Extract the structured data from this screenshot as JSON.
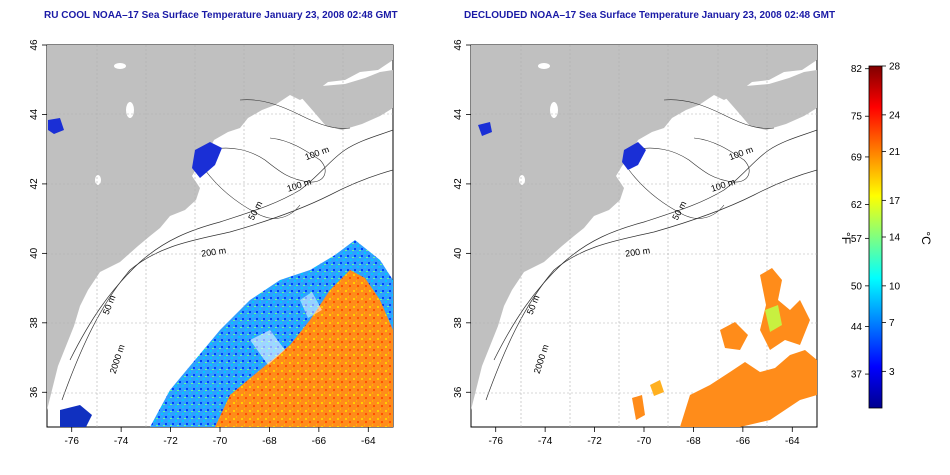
{
  "panels": [
    {
      "title": "RU COOL NOAA–17 Sea Surface Temperature January 23, 2008 02:48 GMT",
      "x_ticks": [
        "-76",
        "-74",
        "-72",
        "-70",
        "-68",
        "-66",
        "-64"
      ],
      "y_ticks": [
        "46",
        "44",
        "42",
        "40",
        "38",
        "36"
      ],
      "contour_labels": [
        "100 m",
        "100 m",
        "50 m",
        "200 m",
        "50 m",
        "2000 m"
      ]
    },
    {
      "title": "DECLOUDED NOAA–17 Sea Surface Temperature January 23, 2008 02:48 GMT",
      "x_ticks": [
        "-76",
        "-74",
        "-72",
        "-70",
        "-68",
        "-66",
        "-64"
      ],
      "y_ticks": [
        "46",
        "44",
        "42",
        "40",
        "38",
        "36"
      ],
      "contour_labels": [
        "100 m",
        "100 m",
        "50 m",
        "200 m",
        "50 m",
        "2000 m"
      ]
    }
  ],
  "map_extent": {
    "lon": [
      -77,
      -63
    ],
    "lat": [
      35,
      46
    ]
  },
  "colorbar": {
    "f_label": "°F",
    "c_label": "°C",
    "f_ticks": [
      "82",
      "75",
      "69",
      "62",
      "57",
      "50",
      "44",
      "37"
    ],
    "c_ticks": [
      "28",
      "24",
      "21",
      "17",
      "14",
      "10",
      "7",
      "3"
    ],
    "colors": [
      "#00008f",
      "#0000ff",
      "#0080ff",
      "#00ffff",
      "#80ff80",
      "#ffff00",
      "#ff8000",
      "#ff0000",
      "#800000"
    ]
  },
  "colors": {
    "land": "#c0c0c0",
    "ocean": "#ffffff",
    "title": "#1a1aa6"
  }
}
